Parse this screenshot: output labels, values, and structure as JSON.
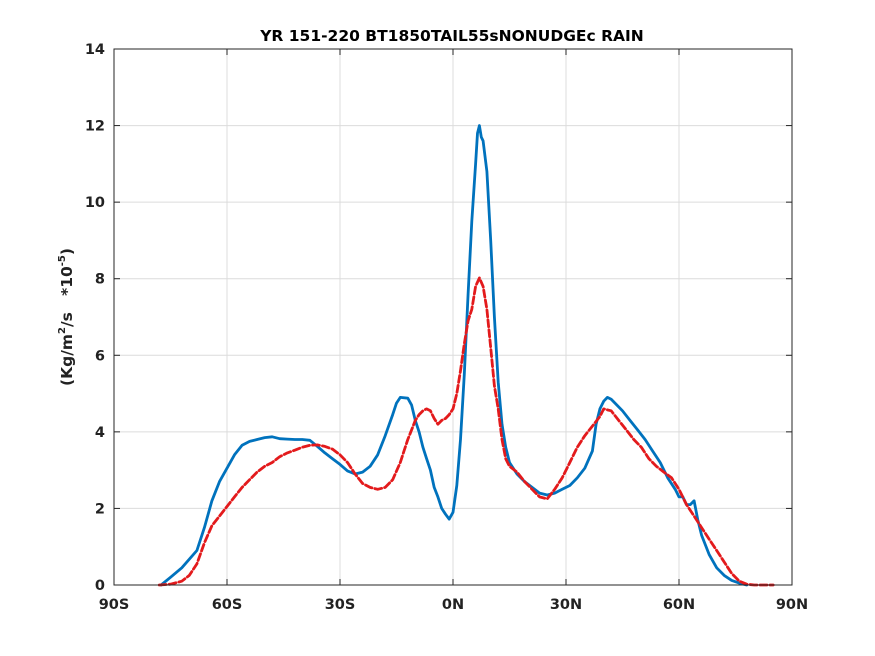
{
  "chart_data": {
    "type": "line",
    "title": "YR 151-220 BT1850TAIL55sNONUDGEc RAIN",
    "ylabel": {
      "main": "(Kg/m",
      "sup1": "2",
      "mid": "/s   *10",
      "sup2": "-5",
      "end": ")"
    },
    "xlim": [
      -90,
      90
    ],
    "ylim": [
      0,
      14
    ],
    "xticks": [
      -90,
      -60,
      -30,
      0,
      30,
      60,
      90
    ],
    "xtick_labels": [
      "90S",
      "60S",
      "30S",
      "0N",
      "30N",
      "60N",
      "90N"
    ],
    "yticks": [
      0,
      2,
      4,
      6,
      8,
      10,
      12,
      14
    ],
    "ytick_labels": [
      "0",
      "2",
      "4",
      "6",
      "8",
      "10",
      "12",
      "14"
    ],
    "grid": true,
    "series": [
      {
        "color": "#0072bd",
        "style": "solid",
        "points": [
          [
            -77.5,
            0.0
          ],
          [
            -75,
            0.2
          ],
          [
            -72,
            0.45
          ],
          [
            -68,
            0.9
          ],
          [
            -66,
            1.5
          ],
          [
            -64,
            2.2
          ],
          [
            -62,
            2.7
          ],
          [
            -60,
            3.05
          ],
          [
            -58,
            3.4
          ],
          [
            -56,
            3.65
          ],
          [
            -54,
            3.75
          ],
          [
            -52,
            3.8
          ],
          [
            -50,
            3.85
          ],
          [
            -48,
            3.87
          ],
          [
            -46,
            3.82
          ],
          [
            -44,
            3.81
          ],
          [
            -42,
            3.8
          ],
          [
            -40,
            3.8
          ],
          [
            -38,
            3.78
          ],
          [
            -36,
            3.62
          ],
          [
            -34,
            3.45
          ],
          [
            -32,
            3.3
          ],
          [
            -30,
            3.15
          ],
          [
            -28,
            2.98
          ],
          [
            -26,
            2.9
          ],
          [
            -24,
            2.95
          ],
          [
            -22,
            3.1
          ],
          [
            -20,
            3.4
          ],
          [
            -18,
            3.9
          ],
          [
            -16,
            4.45
          ],
          [
            -15,
            4.75
          ],
          [
            -14,
            4.9
          ],
          [
            -12,
            4.88
          ],
          [
            -11,
            4.7
          ],
          [
            -10,
            4.3
          ],
          [
            -9,
            4.0
          ],
          [
            -8,
            3.6
          ],
          [
            -7,
            3.3
          ],
          [
            -6,
            3.0
          ],
          [
            -5,
            2.55
          ],
          [
            -4,
            2.3
          ],
          [
            -3,
            2.0
          ],
          [
            -2,
            1.85
          ],
          [
            -1,
            1.72
          ],
          [
            0,
            1.9
          ],
          [
            1,
            2.6
          ],
          [
            2,
            3.8
          ],
          [
            3,
            5.5
          ],
          [
            4,
            7.6
          ],
          [
            5,
            9.5
          ],
          [
            6,
            11.0
          ],
          [
            6.5,
            11.8
          ],
          [
            7,
            12.0
          ],
          [
            7.5,
            11.7
          ],
          [
            8,
            11.6
          ],
          [
            9,
            10.8
          ],
          [
            10,
            9.0
          ],
          [
            11,
            7.0
          ],
          [
            12,
            5.3
          ],
          [
            13,
            4.2
          ],
          [
            14,
            3.6
          ],
          [
            15,
            3.2
          ],
          [
            17,
            2.9
          ],
          [
            19,
            2.7
          ],
          [
            21,
            2.55
          ],
          [
            23,
            2.4
          ],
          [
            25,
            2.35
          ],
          [
            27,
            2.4
          ],
          [
            29,
            2.5
          ],
          [
            31,
            2.6
          ],
          [
            33,
            2.8
          ],
          [
            35,
            3.05
          ],
          [
            37,
            3.5
          ],
          [
            38,
            4.2
          ],
          [
            39,
            4.6
          ],
          [
            40,
            4.8
          ],
          [
            41,
            4.9
          ],
          [
            42,
            4.85
          ],
          [
            43,
            4.75
          ],
          [
            45,
            4.55
          ],
          [
            47,
            4.3
          ],
          [
            49,
            4.05
          ],
          [
            51,
            3.8
          ],
          [
            53,
            3.5
          ],
          [
            55,
            3.2
          ],
          [
            57,
            2.8
          ],
          [
            59,
            2.5
          ],
          [
            60,
            2.3
          ],
          [
            61,
            2.3
          ],
          [
            62,
            2.1
          ],
          [
            63,
            2.1
          ],
          [
            64,
            2.2
          ],
          [
            65,
            1.7
          ],
          [
            66,
            1.3
          ],
          [
            68,
            0.8
          ],
          [
            70,
            0.45
          ],
          [
            72,
            0.25
          ],
          [
            74,
            0.12
          ],
          [
            76,
            0.05
          ],
          [
            78,
            0.0
          ]
        ]
      },
      {
        "color": "#e31a1c",
        "style": "dashed",
        "points": [
          [
            -78,
            0.0
          ],
          [
            -75,
            0.02
          ],
          [
            -72,
            0.1
          ],
          [
            -70,
            0.25
          ],
          [
            -68,
            0.55
          ],
          [
            -66,
            1.1
          ],
          [
            -64,
            1.55
          ],
          [
            -62,
            1.8
          ],
          [
            -60,
            2.05
          ],
          [
            -58,
            2.3
          ],
          [
            -56,
            2.55
          ],
          [
            -54,
            2.75
          ],
          [
            -52,
            2.95
          ],
          [
            -50,
            3.1
          ],
          [
            -48,
            3.2
          ],
          [
            -46,
            3.35
          ],
          [
            -44,
            3.45
          ],
          [
            -42,
            3.52
          ],
          [
            -40,
            3.6
          ],
          [
            -38,
            3.65
          ],
          [
            -36,
            3.66
          ],
          [
            -34,
            3.62
          ],
          [
            -32,
            3.55
          ],
          [
            -30,
            3.4
          ],
          [
            -28,
            3.2
          ],
          [
            -26,
            2.9
          ],
          [
            -24,
            2.65
          ],
          [
            -22,
            2.55
          ],
          [
            -20,
            2.5
          ],
          [
            -18,
            2.55
          ],
          [
            -16,
            2.75
          ],
          [
            -14,
            3.2
          ],
          [
            -13,
            3.5
          ],
          [
            -12,
            3.8
          ],
          [
            -11,
            4.05
          ],
          [
            -10,
            4.3
          ],
          [
            -9,
            4.45
          ],
          [
            -8,
            4.55
          ],
          [
            -7,
            4.6
          ],
          [
            -6,
            4.55
          ],
          [
            -5,
            4.35
          ],
          [
            -4,
            4.2
          ],
          [
            -3,
            4.3
          ],
          [
            -2,
            4.35
          ],
          [
            -1,
            4.45
          ],
          [
            0,
            4.6
          ],
          [
            1,
            5.0
          ],
          [
            2,
            5.6
          ],
          [
            3,
            6.3
          ],
          [
            4,
            6.9
          ],
          [
            5,
            7.2
          ],
          [
            6,
            7.8
          ],
          [
            7,
            8.02
          ],
          [
            8,
            7.8
          ],
          [
            9,
            7.2
          ],
          [
            10,
            6.2
          ],
          [
            11,
            5.2
          ],
          [
            12,
            4.6
          ],
          [
            13,
            3.8
          ],
          [
            14,
            3.3
          ],
          [
            15,
            3.1
          ],
          [
            17,
            2.95
          ],
          [
            19,
            2.7
          ],
          [
            21,
            2.5
          ],
          [
            23,
            2.3
          ],
          [
            25,
            2.25
          ],
          [
            27,
            2.5
          ],
          [
            29,
            2.8
          ],
          [
            31,
            3.2
          ],
          [
            33,
            3.6
          ],
          [
            35,
            3.9
          ],
          [
            37,
            4.15
          ],
          [
            39,
            4.4
          ],
          [
            40,
            4.6
          ],
          [
            42,
            4.55
          ],
          [
            44,
            4.3
          ],
          [
            46,
            4.05
          ],
          [
            48,
            3.8
          ],
          [
            50,
            3.6
          ],
          [
            52,
            3.3
          ],
          [
            54,
            3.1
          ],
          [
            56,
            2.95
          ],
          [
            58,
            2.8
          ],
          [
            60,
            2.5
          ],
          [
            62,
            2.1
          ],
          [
            64,
            1.8
          ],
          [
            66,
            1.5
          ],
          [
            68,
            1.2
          ],
          [
            70,
            0.9
          ],
          [
            72,
            0.6
          ],
          [
            74,
            0.3
          ],
          [
            76,
            0.1
          ],
          [
            78,
            0.02
          ],
          [
            80,
            0.0
          ],
          [
            85,
            0.0
          ]
        ]
      }
    ]
  }
}
